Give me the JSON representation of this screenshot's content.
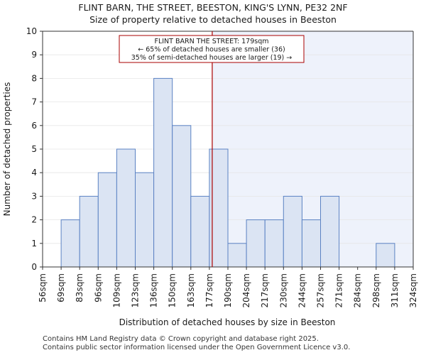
{
  "chart_data": {
    "type": "histogram",
    "title": "FLINT BARN, THE STREET, BEESTON, KING'S LYNN, PE32 2NF",
    "subtitle": "Size of property relative to detached houses in Beeston",
    "xlabel": "Distribution of detached houses by size in Beeston",
    "ylabel": "Number of detached properties",
    "ylim": [
      0,
      10
    ],
    "yticks": [
      0,
      1,
      2,
      3,
      4,
      5,
      6,
      7,
      8,
      9,
      10
    ],
    "categories": [
      "56sqm",
      "69sqm",
      "83sqm",
      "96sqm",
      "109sqm",
      "123sqm",
      "136sqm",
      "150sqm",
      "163sqm",
      "177sqm",
      "190sqm",
      "204sqm",
      "217sqm",
      "230sqm",
      "244sqm",
      "257sqm",
      "271sqm",
      "284sqm",
      "298sqm",
      "311sqm",
      "324sqm"
    ],
    "values": [
      0,
      2,
      3,
      4,
      5,
      4,
      8,
      6,
      3,
      5,
      1,
      2,
      2,
      3,
      2,
      3,
      0,
      0,
      1,
      0
    ],
    "marker": {
      "value": 179,
      "label": "FLINT BARN THE STREET: 179sqm"
    },
    "annotation": [
      "FLINT BARN THE STREET: 179sqm",
      "← 65% of detached houses are smaller (36)",
      "35% of semi-detached houses are larger (19) →"
    ],
    "colors": {
      "bar_fill": "#dbe4f3",
      "bar_edge": "#5b82c3",
      "marker": "#aa0000",
      "shade": "#eef2fb",
      "axis": "#333333"
    }
  },
  "footer": {
    "line1": "Contains HM Land Registry data © Crown copyright and database right 2025.",
    "line2": "Contains public sector information licensed under the Open Government Licence v3.0."
  }
}
